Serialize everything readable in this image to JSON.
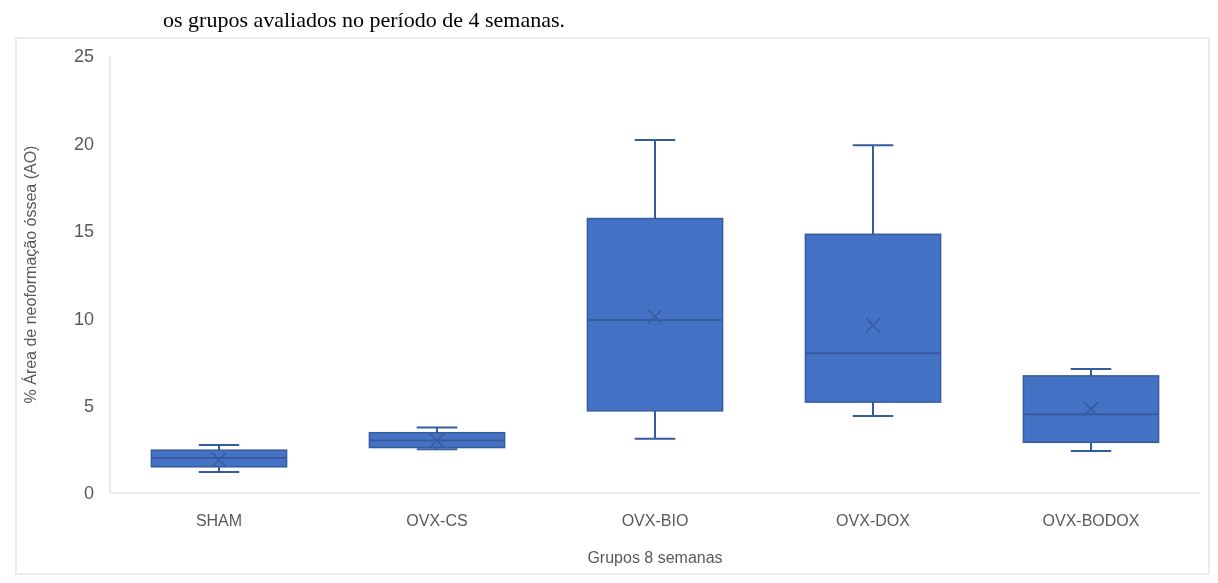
{
  "chart_data": {
    "type": "box",
    "annotations": [
      "os grupos avaliados no período de 4 semanas."
    ],
    "xlabel": "Grupos 8 semanas",
    "ylabel": "% Área de neoformação óssea (AO)",
    "categories": [
      "SHAM",
      "OVX-CS",
      "OVX-BIO",
      "OVX-DOX",
      "OVX-BODOX"
    ],
    "color": "#4472c4",
    "boxes": [
      {
        "low": 1.2,
        "q1": 1.5,
        "median": 2.0,
        "q3": 2.45,
        "high": 2.75,
        "mean": 1.9
      },
      {
        "low": 2.5,
        "q1": 2.6,
        "median": 3.0,
        "q3": 3.45,
        "high": 3.75,
        "mean": 3.0
      },
      {
        "low": 3.1,
        "q1": 4.7,
        "median": 9.9,
        "q3": 15.7,
        "high": 20.2,
        "mean": 10.1
      },
      {
        "low": 4.4,
        "q1": 5.2,
        "median": 8.0,
        "q3": 14.8,
        "high": 19.9,
        "mean": 9.6
      },
      {
        "low": 2.4,
        "q1": 2.9,
        "median": 4.5,
        "q3": 6.7,
        "high": 7.1,
        "mean": 4.8
      }
    ],
    "ylim": [
      0,
      25
    ],
    "yticks": [
      0,
      5,
      10,
      15,
      20,
      25
    ],
    "grid": false
  }
}
